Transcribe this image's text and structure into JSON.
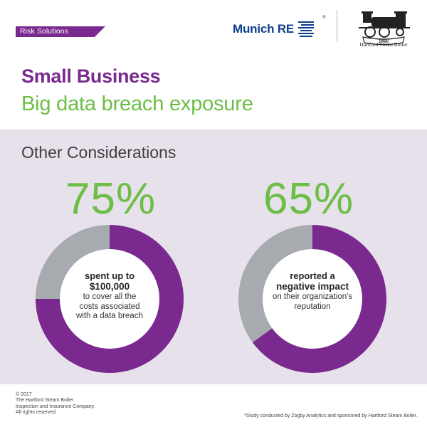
{
  "header": {
    "tag_label": "Risk Solutions",
    "brand_name": "Munich RE",
    "partner_year": "1866",
    "partner_name": "Hartford Steam Boiler"
  },
  "titles": {
    "line1": "Small Business",
    "line2": "Big data breach exposure"
  },
  "section": {
    "title": "Other Considerations"
  },
  "colors": {
    "purple": "#7a2a8f",
    "green": "#6cbe45",
    "gray": "#a7aaae",
    "band": "#e7e1eb",
    "navy": "#0d3f8c"
  },
  "chart_data": [
    {
      "type": "pie",
      "label": "75%",
      "slices": [
        {
          "value": 75,
          "color": "#7a2a8f"
        },
        {
          "value": 25,
          "color": "#a7aaae"
        }
      ],
      "center_text": {
        "bold1": "spent up to",
        "bold2": "$100,000",
        "line1": "to cover all the",
        "line2": "costs associated",
        "line3": "with a data breach"
      }
    },
    {
      "type": "pie",
      "label": "65%",
      "slices": [
        {
          "value": 65,
          "color": "#7a2a8f"
        },
        {
          "value": 35,
          "color": "#a7aaae"
        }
      ],
      "center_text": {
        "bold1": "reported a",
        "bold2": "negative impact",
        "line1": "on their organization's",
        "line2": "reputation",
        "line3": ""
      }
    }
  ],
  "footer": {
    "copyright_lines": [
      "© 2017",
      "The Hartford Steam Boiler",
      "Inspection and Insurance Company.",
      "All rights reserved."
    ],
    "footnote": "*Study conducted by Zogby Analytics and sponsored by Hartford Steam Boiler."
  }
}
